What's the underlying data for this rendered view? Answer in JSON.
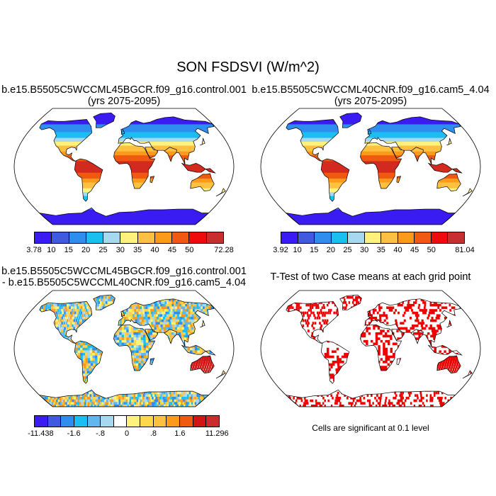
{
  "title": "SON FSDSVI (W/m^2)",
  "panels": [
    {
      "title_line1": "b.e15.B5505C5WCCML45BGCR.f09_g16.control.001",
      "title_line2": "(yrs 2075-2095)",
      "colorbar_labels": [
        "3.78",
        "10",
        "15",
        "20",
        "25",
        "30",
        "35",
        "40",
        "45",
        "50",
        "72.28"
      ],
      "colorbar_colors": [
        "#3a1cf2",
        "#3f5ae0",
        "#2d8ef0",
        "#1bbef0",
        "#a6d8f0",
        "#fff27a",
        "#fec040",
        "#fd9a1c",
        "#ef5a10",
        "#ee0b0b",
        "#c92d2d"
      ]
    },
    {
      "title_line1": "b.e15.B5505C5WCCML40CNR.f09_g16.cam5_4.04",
      "title_line2": "(yrs 2075-2095)",
      "colorbar_labels": [
        "3.92",
        "10",
        "15",
        "20",
        "25",
        "30",
        "35",
        "40",
        "45",
        "50",
        "81.04"
      ],
      "colorbar_colors": [
        "#3a1cf2",
        "#3f5ae0",
        "#2d8ef0",
        "#1bbef0",
        "#a6d8f0",
        "#fff27a",
        "#fec040",
        "#fd9a1c",
        "#ef5a10",
        "#ee0b0b",
        "#c92d2d"
      ]
    },
    {
      "title_line1": "b.e15.B5505C5WCCML45BGCR.f09_g16.control.001",
      "title_line2": "- b.e15.B5505C5WCCML40CNR.f09_g16.cam5_4.04",
      "colorbar_labels": [
        "-11.438",
        "-1.6",
        "-.8",
        "0",
        ".8",
        "1.6",
        "11.296"
      ],
      "colorbar_tick_slots": [
        0,
        3,
        5,
        7,
        9,
        11,
        13
      ],
      "colorbar_colors": [
        "#3a1cf2",
        "#3f5ae0",
        "#2d8ef0",
        "#1bbef0",
        "#5fb7f0",
        "#a6d8f0",
        "#ffffff",
        "#fff27a",
        "#fed84a",
        "#fec040",
        "#fd9a1c",
        "#ef5a10",
        "#d21414",
        "#c92d2d"
      ]
    },
    {
      "title_line1": "T-Test of two Case means at each grid point",
      "note": "Cells are significant at 0.1 level",
      "significant_color": "#ee0000"
    }
  ]
}
